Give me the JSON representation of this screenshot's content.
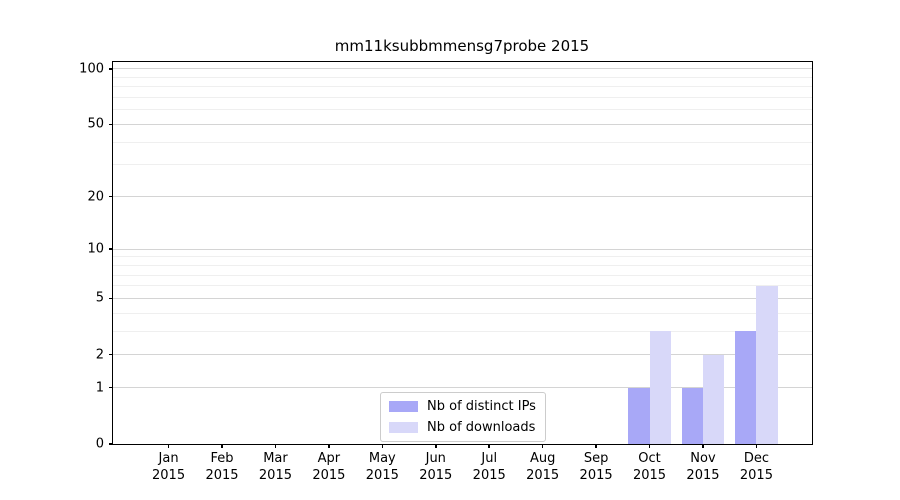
{
  "chart_data": {
    "type": "bar",
    "title": "mm11ksubbmmensg7probe 2015",
    "categories": [
      "Jan",
      "Feb",
      "Mar",
      "Apr",
      "May",
      "Jun",
      "Jul",
      "Aug",
      "Sep",
      "Oct",
      "Nov",
      "Dec"
    ],
    "year": "2015",
    "series": [
      {
        "name": "Nb of distinct IPs",
        "color": "#a8a8f7",
        "values": [
          0,
          0,
          0,
          0,
          0,
          0,
          0,
          0,
          0,
          1,
          1,
          3
        ]
      },
      {
        "name": "Nb of downloads",
        "color": "#d8d8f9",
        "values": [
          0,
          0,
          0,
          0,
          0,
          0,
          0,
          0,
          0,
          3,
          2,
          6
        ]
      }
    ],
    "scale": "log1p",
    "ylim": [
      0,
      109
    ],
    "y_ticks": [
      0,
      1,
      2,
      5,
      10,
      20,
      50,
      100
    ],
    "y_minor_ticks": [
      3,
      4,
      6,
      7,
      8,
      9,
      30,
      40,
      60,
      70,
      80,
      90
    ],
    "grid": "horizontal",
    "legend_position": "lower center",
    "grid_major_color": "#d4d4d4",
    "grid_minor_color": "#efefef",
    "bar_slot_fraction": 0.4
  }
}
